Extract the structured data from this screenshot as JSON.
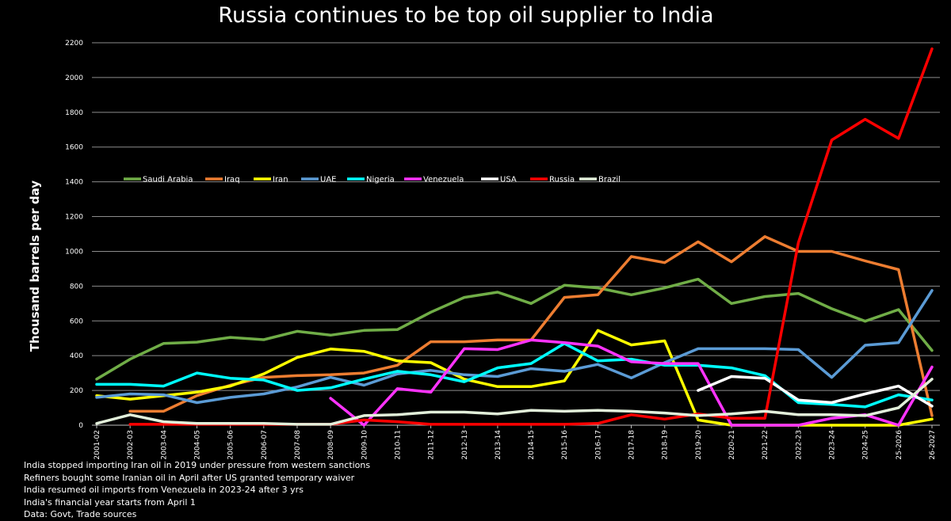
{
  "chart_data": {
    "type": "line",
    "title": "Russia continues to be top oil supplier to India",
    "ylabel": "Thousand barrels per day",
    "xlabel": "",
    "ylim": [
      0,
      2200
    ],
    "yticks": [
      0,
      200,
      400,
      600,
      800,
      1000,
      1200,
      1400,
      1600,
      1800,
      2000,
      2200
    ],
    "grid": "horizontal",
    "legend_position": "top-left, inside plot",
    "categories": [
      "2001-02",
      "2002-03",
      "2003-04",
      "2004-05",
      "2005-06",
      "2006-07",
      "2007-08",
      "2008-09",
      "2009-10",
      "2010-11",
      "2011-12",
      "2012-13",
      "2013-14",
      "2014-15",
      "2015-16",
      "2016-17",
      "2017-18",
      "2018-19",
      "2019-20",
      "2020-21",
      "2021-22",
      "2022-23",
      "2023-24",
      "2024-25",
      "2025-2026",
      "2026-2027"
    ],
    "series": [
      {
        "name": "Saudi Arabia",
        "color": "#70AD47",
        "values": [
          265,
          380,
          470,
          478,
          505,
          492,
          540,
          518,
          545,
          550,
          650,
          735,
          765,
          700,
          805,
          790,
          750,
          790,
          840,
          700,
          740,
          758,
          670,
          598,
          665,
          430
        ]
      },
      {
        "name": "Iraq",
        "color": "#ED7D31",
        "values": [
          null,
          80,
          80,
          170,
          230,
          275,
          285,
          290,
          300,
          345,
          480,
          480,
          490,
          490,
          735,
          750,
          970,
          935,
          1055,
          940,
          1085,
          1000,
          1000,
          945,
          895,
          55
        ]
      },
      {
        "name": "Iran",
        "color": "#FFFF00",
        "values": [
          170,
          150,
          170,
          190,
          225,
          295,
          390,
          438,
          425,
          370,
          360,
          265,
          222,
          222,
          255,
          545,
          462,
          485,
          30,
          0,
          0,
          0,
          0,
          0,
          0,
          35
        ]
      },
      {
        "name": "UAE",
        "color": "#5B9BD5",
        "values": [
          160,
          180,
          175,
          130,
          160,
          180,
          220,
          275,
          230,
          295,
          315,
          290,
          280,
          325,
          310,
          350,
          272,
          360,
          440,
          440,
          440,
          435,
          275,
          460,
          475,
          775
        ]
      },
      {
        "name": "Nigeria",
        "color": "#00FFFF",
        "values": [
          235,
          235,
          225,
          300,
          270,
          260,
          200,
          215,
          265,
          310,
          290,
          250,
          330,
          355,
          470,
          370,
          380,
          345,
          345,
          330,
          285,
          130,
          120,
          105,
          175,
          145
        ]
      },
      {
        "name": "Venezuela",
        "color": "#FF33FF",
        "values": [
          null,
          null,
          null,
          null,
          null,
          null,
          null,
          155,
          0,
          210,
          190,
          440,
          435,
          490,
          475,
          455,
          365,
          355,
          355,
          0,
          0,
          0,
          40,
          60,
          0,
          335
        ]
      },
      {
        "name": "USA",
        "color": "#FFFFFF",
        "values": [
          null,
          null,
          null,
          null,
          null,
          null,
          null,
          null,
          null,
          null,
          null,
          null,
          null,
          null,
          null,
          null,
          null,
          null,
          200,
          280,
          270,
          145,
          130,
          180,
          225,
          110
        ]
      },
      {
        "name": "Russia",
        "color": "#FF0000",
        "values": [
          null,
          5,
          5,
          5,
          5,
          5,
          5,
          5,
          30,
          20,
          5,
          5,
          5,
          5,
          5,
          10,
          60,
          35,
          65,
          40,
          40,
          1050,
          1640,
          1760,
          1650,
          2165
        ]
      },
      {
        "name": "Brazil",
        "color": "#E2EFDA",
        "values": [
          10,
          60,
          20,
          10,
          10,
          10,
          5,
          5,
          55,
          60,
          75,
          75,
          65,
          85,
          80,
          85,
          80,
          70,
          55,
          65,
          80,
          60,
          60,
          55,
          100,
          265
        ]
      }
    ],
    "notes": [
      "India stopped importing Iran oil in 2019 under pressure from western sanctions",
      "Refiners bought some Iranian oil in April after US granted temporary waiver",
      "India resumed oil imports from Venezuela in 2023-24 after 3 yrs",
      "India's financial year starts from April 1",
      "Data: Govt, Trade sources"
    ]
  }
}
